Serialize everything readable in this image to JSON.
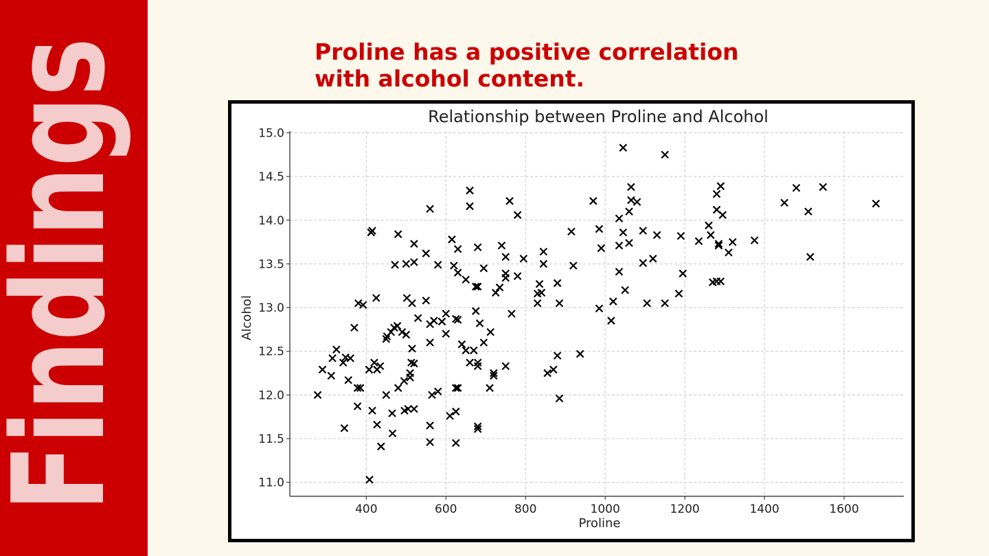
{
  "sidebar": {
    "heading": "Findings"
  },
  "slide": {
    "title": "Proline has a positive correlation with alcohol content."
  },
  "chart_data": {
    "type": "scatter",
    "title": "Relationship between Proline and Alcohol",
    "xlabel": "Proline",
    "ylabel": "Alcohol",
    "color": "#000000",
    "marker": "x",
    "grid": true,
    "xlim": [
      208,
      1750
    ],
    "ylim": [
      10.84,
      15.02
    ],
    "xticks": [
      400,
      600,
      800,
      1000,
      1200,
      1400,
      1600
    ],
    "yticks": [
      {
        "value": 11,
        "label": "11.0"
      },
      11.5,
      {
        "value": 12,
        "label": "12.0"
      },
      12.5,
      {
        "value": 13,
        "label": "13.0"
      },
      13.5,
      {
        "value": 14,
        "label": "14.0"
      },
      14.5,
      {
        "value": 15,
        "label": "15.0"
      }
    ],
    "x": [
      278,
      290,
      315,
      312,
      325,
      345,
      342,
      348,
      355,
      360,
      370,
      378,
      378,
      380,
      385,
      392,
      407,
      408,
      412,
      415,
      415,
      420,
      425,
      427,
      427,
      435,
      437,
      450,
      450,
      452,
      462,
      465,
      466,
      470,
      472,
      478,
      480,
      480,
      490,
      495,
      496,
      500,
      500,
      502,
      505,
      510,
      510,
      513,
      515,
      515,
      520,
      520,
      520,
      520,
      530,
      550,
      550,
      560,
      560,
      560,
      560,
      560,
      565,
      570,
      580,
      580,
      590,
      600,
      600,
      610,
      615,
      620,
      625,
      625,
      625,
      625,
      630,
      630,
      630,
      630,
      640,
      650,
      650,
      660,
      660,
      660,
      670,
      675,
      675,
      680,
      680,
      680,
      680,
      680,
      680,
      685,
      695,
      695,
      710,
      712,
      720,
      720,
      725,
      735,
      740,
      750,
      750,
      750,
      750,
      760,
      765,
      780,
      780,
      795,
      830,
      830,
      835,
      840,
      845,
      845,
      855,
      870,
      880,
      880,
      885,
      885,
      915,
      920,
      937,
      970,
      985,
      985,
      990,
      1015,
      1020,
      1035,
      1035,
      1035,
      1045,
      1045,
      1050,
      1060,
      1060,
      1065,
      1065,
      1080,
      1095,
      1095,
      1105,
      1120,
      1130,
      1150,
      1150,
      1185,
      1190,
      1195,
      1235,
      1260,
      1265,
      1270,
      1280,
      1280,
      1280,
      1285,
      1285,
      1290,
      1290,
      1295,
      1310,
      1320,
      1375,
      1450,
      1480,
      1510,
      1515,
      1547,
      1680
    ],
    "values": [
      12.0,
      12.29,
      12.42,
      12.22,
      12.52,
      11.62,
      12.37,
      12.43,
      12.17,
      12.42,
      12.77,
      12.08,
      11.87,
      13.05,
      12.08,
      13.03,
      12.29,
      11.03,
      13.86,
      13.88,
      11.82,
      12.37,
      13.11,
      12.29,
      11.66,
      12.33,
      11.41,
      12.0,
      12.64,
      12.67,
      12.72,
      11.79,
      11.56,
      12.77,
      13.49,
      12.79,
      13.84,
      12.08,
      12.72,
      12.16,
      11.82,
      12.69,
      13.5,
      13.11,
      11.84,
      12.25,
      12.2,
      12.37,
      12.53,
      13.05,
      12.36,
      11.84,
      13.73,
      13.52,
      12.88,
      13.62,
      13.08,
      14.13,
      12.81,
      12.6,
      11.65,
      11.46,
      12.0,
      12.85,
      13.49,
      12.04,
      12.84,
      12.93,
      12.7,
      11.76,
      13.78,
      13.48,
      12.87,
      12.08,
      11.81,
      11.45,
      13.4,
      13.67,
      12.08,
      12.86,
      12.58,
      13.32,
      12.51,
      14.34,
      14.16,
      12.37,
      12.51,
      12.96,
      13.24,
      13.24,
      12.33,
      12.37,
      11.61,
      11.64,
      13.69,
      12.82,
      13.45,
      12.6,
      12.08,
      12.72,
      12.22,
      12.25,
      13.17,
      13.23,
      13.71,
      13.39,
      13.58,
      13.34,
      12.33,
      14.22,
      12.93,
      14.06,
      13.36,
      13.56,
      13.05,
      13.16,
      13.27,
      13.17,
      13.64,
      13.5,
      12.25,
      12.29,
      12.45,
      13.28,
      13.05,
      11.96,
      13.87,
      13.48,
      12.47,
      14.22,
      13.9,
      12.99,
      13.68,
      12.85,
      13.07,
      14.02,
      13.71,
      13.41,
      14.83,
      13.86,
      13.2,
      14.1,
      13.74,
      14.38,
      14.23,
      14.21,
      13.88,
      13.51,
      13.05,
      13.56,
      13.83,
      14.75,
      13.05,
      13.16,
      13.82,
      13.39,
      13.76,
      13.94,
      13.83,
      13.29,
      14.3,
      14.12,
      13.3,
      13.73,
      13.71,
      14.39,
      13.3,
      14.06,
      13.63,
      13.75,
      13.77,
      14.2,
      14.37,
      14.1,
      13.58,
      14.38,
      14.19
    ]
  }
}
